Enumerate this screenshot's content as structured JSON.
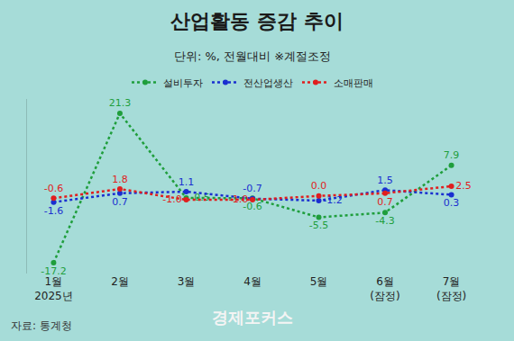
{
  "chart_data": {
    "type": "line",
    "title": "산업활동 증감 추이",
    "subtitle": "단위: %, 전월대비 ※계절조정",
    "source": "자료: 통계청",
    "annotations": [
      "경제포커스"
    ],
    "categories": [
      "1월\n2025년",
      "2월",
      "3월",
      "4월",
      "5월",
      "6월\n(잠정)",
      "7월\n(잠정)"
    ],
    "series": [
      {
        "name": "설비투자",
        "color": "#1f9e3c",
        "values": [
          -17.2,
          21.3,
          -0.5,
          -0.6,
          -5.5,
          -4.3,
          7.9
        ],
        "value_labels": [
          "-17.2",
          "21.3",
          "-0.5",
          "-0.6",
          "-5.5",
          "-4.3",
          "7.9"
        ]
      },
      {
        "name": "전산업생산",
        "color": "#1a2fd0",
        "values": [
          -1.6,
          0.7,
          1.1,
          -0.7,
          -1.2,
          1.5,
          0.3
        ],
        "value_labels": [
          "-1.6",
          "0.7",
          "1.1",
          "-0.7",
          "-1.2",
          "1.5",
          "0.3"
        ]
      },
      {
        "name": "소매판매",
        "color": "#e01e1e",
        "values": [
          -0.6,
          1.8,
          -1.0,
          -1.0,
          0.0,
          0.7,
          2.5
        ],
        "value_labels": [
          "-0.6",
          "1.8",
          "-1.0",
          "-1.0",
          "0.0",
          "0.7",
          "2.5"
        ]
      }
    ],
    "ylim": [
      -20,
      25
    ],
    "grid": false,
    "legend": "top",
    "data_labels": true,
    "tick_labels": "x",
    "marker": "circle",
    "line_style": "dot"
  }
}
